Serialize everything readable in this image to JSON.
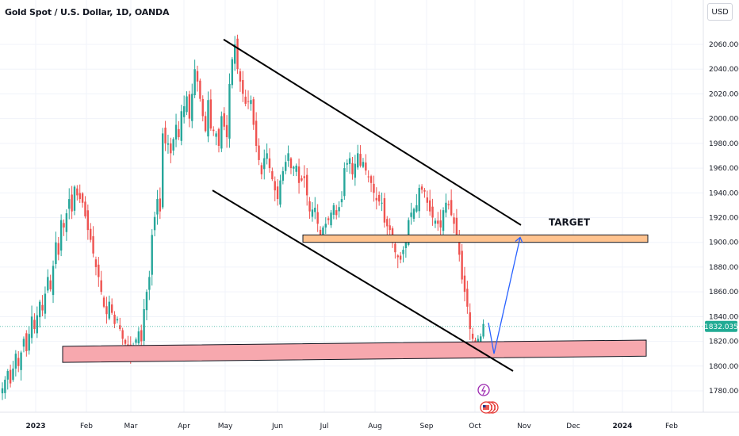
{
  "header": {
    "title": "Gold Spot / U.S. Dollar, 1D, OANDA",
    "currency": "USD"
  },
  "chart_data": {
    "type": "candlestick",
    "title": "Gold Spot / U.S. Dollar, 1D, OANDA",
    "y_ticks": [
      1780,
      1800,
      1820,
      1840,
      1860,
      1880,
      1900,
      1920,
      1940,
      1960,
      1980,
      2000,
      2020,
      2040,
      2060
    ],
    "y_tick_labels": [
      "1780.000",
      "1800.000",
      "1820.000",
      "1840.000",
      "1860.000",
      "1880.000",
      "1900.000",
      "1920.000",
      "1940.000",
      "1960.000",
      "1980.000",
      "2000.000",
      "2020.000",
      "2040.000",
      "2060.000"
    ],
    "x_ticks": [
      {
        "label": "2023",
        "bold": true
      },
      {
        "label": "Feb",
        "bold": false
      },
      {
        "label": "Mar",
        "bold": false
      },
      {
        "label": "Apr",
        "bold": false
      },
      {
        "label": "May",
        "bold": false
      },
      {
        "label": "Jun",
        "bold": false
      },
      {
        "label": "Jul",
        "bold": false
      },
      {
        "label": "Aug",
        "bold": false
      },
      {
        "label": "Sep",
        "bold": false
      },
      {
        "label": "Oct",
        "bold": false
      },
      {
        "label": "Nov",
        "bold": false
      },
      {
        "label": "Dec",
        "bold": false
      },
      {
        "label": "2024",
        "bold": true
      },
      {
        "label": "Feb",
        "bold": false
      }
    ],
    "last_price": 1832.035,
    "last_price_label": "1832.035",
    "colors": {
      "up": "#26a69a",
      "down": "#ef5350",
      "price_tag": "#22ab94"
    },
    "price_path": [
      [
        0,
        1782
      ],
      [
        2,
        1796
      ],
      [
        3,
        1786
      ],
      [
        5,
        1810
      ],
      [
        6,
        1800
      ],
      [
        8,
        1822
      ],
      [
        9,
        1812
      ],
      [
        11,
        1840
      ],
      [
        12,
        1830
      ],
      [
        14,
        1852
      ],
      [
        15,
        1845
      ],
      [
        17,
        1872
      ],
      [
        18,
        1862
      ],
      [
        20,
        1900
      ],
      [
        21,
        1890
      ],
      [
        22,
        1918
      ],
      [
        23,
        1912
      ],
      [
        25,
        1935
      ],
      [
        26,
        1925
      ],
      [
        27,
        1945
      ],
      [
        28,
        1938
      ],
      [
        30,
        1932
      ],
      [
        32,
        1910
      ],
      [
        33,
        1902
      ],
      [
        35,
        1880
      ],
      [
        36,
        1872
      ],
      [
        38,
        1848
      ],
      [
        39,
        1842
      ],
      [
        40,
        1852
      ],
      [
        42,
        1834
      ],
      [
        43,
        1838
      ],
      [
        45,
        1822
      ],
      [
        46,
        1818
      ],
      [
        48,
        1808
      ],
      [
        49,
        1815
      ],
      [
        51,
        1828
      ],
      [
        52,
        1820
      ],
      [
        53,
        1846
      ],
      [
        54,
        1860
      ],
      [
        55,
        1872
      ],
      [
        56,
        1906
      ],
      [
        58,
        1935
      ],
      [
        59,
        1925
      ],
      [
        60,
        1988
      ],
      [
        61,
        1980
      ],
      [
        62,
        1980
      ],
      [
        63,
        1972
      ],
      [
        65,
        1995
      ],
      [
        66,
        1985
      ],
      [
        67,
        2006
      ],
      [
        68,
        2010
      ],
      [
        69,
        2018
      ],
      [
        70,
        2000
      ],
      [
        72,
        2040
      ],
      [
        73,
        2030
      ],
      [
        75,
        2002
      ],
      [
        76,
        1990
      ],
      [
        77,
        2015
      ],
      [
        78,
        1992
      ],
      [
        80,
        1988
      ],
      [
        81,
        1978
      ],
      [
        82,
        2002
      ],
      [
        84,
        1985
      ],
      [
        85,
        2028
      ],
      [
        86,
        2048
      ],
      [
        87,
        2060
      ],
      [
        88,
        2040
      ],
      [
        89,
        2030
      ],
      [
        90,
        2020
      ],
      [
        91,
        2012
      ],
      [
        93,
        2015
      ],
      [
        94,
        1995
      ],
      [
        95,
        1978
      ],
      [
        97,
        1955
      ],
      [
        98,
        1968
      ],
      [
        99,
        1972
      ],
      [
        100,
        1960
      ],
      [
        102,
        1942
      ],
      [
        103,
        1935
      ],
      [
        104,
        1950
      ],
      [
        106,
        1965
      ],
      [
        107,
        1972
      ],
      [
        108,
        1960
      ],
      [
        110,
        1962
      ],
      [
        111,
        1948
      ],
      [
        113,
        1952
      ],
      [
        114,
        1938
      ],
      [
        115,
        1925
      ],
      [
        117,
        1928
      ],
      [
        118,
        1915
      ],
      [
        119,
        1905
      ],
      [
        120,
        1912
      ],
      [
        122,
        1918
      ],
      [
        124,
        1930
      ],
      [
        125,
        1922
      ],
      [
        127,
        1935
      ],
      [
        128,
        1960
      ],
      [
        130,
        1968
      ],
      [
        131,
        1955
      ],
      [
        133,
        1972
      ],
      [
        134,
        1962
      ],
      [
        135,
        1965
      ],
      [
        136,
        1958
      ],
      [
        138,
        1948
      ],
      [
        139,
        1940
      ],
      [
        140,
        1934
      ],
      [
        142,
        1932
      ],
      [
        143,
        1916
      ],
      [
        145,
        1910
      ],
      [
        146,
        1900
      ],
      [
        147,
        1892
      ],
      [
        148,
        1888
      ],
      [
        149,
        1886
      ],
      [
        150,
        1894
      ],
      [
        151,
        1902
      ],
      [
        152,
        1918
      ],
      [
        153,
        1924
      ],
      [
        155,
        1930
      ],
      [
        156,
        1944
      ],
      [
        158,
        1941
      ],
      [
        159,
        1932
      ],
      [
        160,
        1925
      ],
      [
        161,
        1920
      ],
      [
        163,
        1915
      ],
      [
        164,
        1912
      ],
      [
        165,
        1926
      ],
      [
        166,
        1932
      ],
      [
        167,
        1930
      ],
      [
        168,
        1922
      ],
      [
        169,
        1915
      ],
      [
        170,
        1905
      ],
      [
        171,
        1890
      ],
      [
        172,
        1870
      ],
      [
        173,
        1860
      ],
      [
        174,
        1848
      ],
      [
        175,
        1830
      ],
      [
        176,
        1822
      ],
      [
        177,
        1818
      ],
      [
        178,
        1822
      ],
      [
        179,
        1824
      ],
      [
        180,
        1834
      ]
    ],
    "annotations": {
      "target_label": "TARGET",
      "resistance_zone": [
        1900,
        1906
      ],
      "support_zone_left": [
        1803,
        1816
      ],
      "support_zone_right": [
        1808,
        1821
      ],
      "channel_upper": {
        "from": 2064,
        "to": 1914
      },
      "channel_lower": {
        "from": 1942,
        "to": 1796
      },
      "projection": [
        [
          1835,
          1826
        ],
        [
          1810,
          1809
        ],
        [
          1904,
          1905
        ]
      ]
    }
  }
}
